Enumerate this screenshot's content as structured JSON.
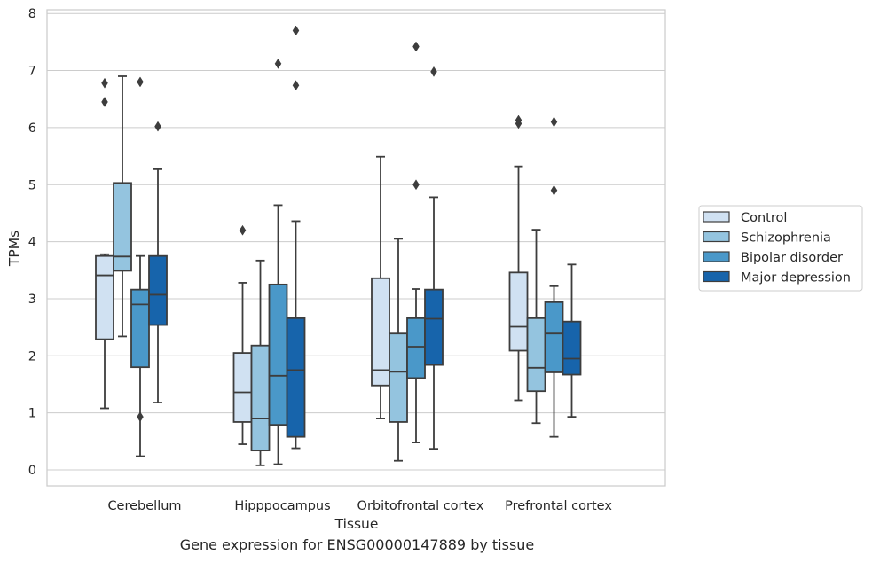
{
  "caption": "Gene expression for ENSG00000147889 by tissue",
  "chart_data": {
    "type": "boxplot",
    "xlabel": "Tissue",
    "ylabel": "TPMs",
    "ylim": [
      -0.3,
      8.05
    ],
    "yticks": [
      0,
      1,
      2,
      3,
      4,
      5,
      6,
      7,
      8
    ],
    "grid": "horizontal",
    "legend_position": "right",
    "categories": [
      "Cerebellum",
      "Hipppocampus",
      "Orbitofrontal cortex",
      "Prefrontal cortex"
    ],
    "series": [
      {
        "name": "Control",
        "color": "#d0e1f2",
        "boxes": [
          {
            "whisker_low": 1.08,
            "q1": 2.29,
            "median": 3.41,
            "q3": 3.75,
            "whisker_high": 3.78,
            "outliers": [
              6.45,
              6.78
            ]
          },
          {
            "whisker_low": 0.45,
            "q1": 0.84,
            "median": 1.36,
            "q3": 2.05,
            "whisker_high": 3.28,
            "outliers": [
              4.2
            ]
          },
          {
            "whisker_low": 0.9,
            "q1": 1.48,
            "median": 1.75,
            "q3": 3.36,
            "whisker_high": 5.49,
            "outliers": []
          },
          {
            "whisker_low": 1.22,
            "q1": 2.09,
            "median": 2.51,
            "q3": 3.46,
            "whisker_high": 5.32,
            "outliers": [
              6.07,
              6.13
            ]
          }
        ]
      },
      {
        "name": "Schizophrenia",
        "color": "#94c4df",
        "boxes": [
          {
            "whisker_low": 2.34,
            "q1": 3.49,
            "median": 3.74,
            "q3": 5.03,
            "whisker_high": 6.9,
            "outliers": []
          },
          {
            "whisker_low": 0.08,
            "q1": 0.34,
            "median": 0.9,
            "q3": 2.18,
            "whisker_high": 3.67,
            "outliers": []
          },
          {
            "whisker_low": 0.16,
            "q1": 0.84,
            "median": 1.72,
            "q3": 2.39,
            "whisker_high": 4.05,
            "outliers": []
          },
          {
            "whisker_low": 0.82,
            "q1": 1.38,
            "median": 1.79,
            "q3": 2.66,
            "whisker_high": 4.21,
            "outliers": []
          }
        ]
      },
      {
        "name": "Bipolar disorder",
        "color": "#4a98c9",
        "boxes": [
          {
            "whisker_low": 0.24,
            "q1": 1.8,
            "median": 2.9,
            "q3": 3.16,
            "whisker_high": 3.75,
            "outliers": [
              0.93,
              6.8
            ]
          },
          {
            "whisker_low": 0.1,
            "q1": 0.79,
            "median": 1.65,
            "q3": 3.25,
            "whisker_high": 4.64,
            "outliers": [
              7.12
            ]
          },
          {
            "whisker_low": 0.48,
            "q1": 1.61,
            "median": 2.16,
            "q3": 2.66,
            "whisker_high": 3.17,
            "outliers": [
              5.0,
              7.42
            ]
          },
          {
            "whisker_low": 0.58,
            "q1": 1.71,
            "median": 2.39,
            "q3": 2.94,
            "whisker_high": 3.22,
            "outliers": [
              4.9,
              6.1
            ]
          }
        ]
      },
      {
        "name": "Major depression",
        "color": "#1764ab",
        "boxes": [
          {
            "whisker_low": 1.18,
            "q1": 2.54,
            "median": 3.07,
            "q3": 3.75,
            "whisker_high": 5.27,
            "outliers": [
              6.02
            ]
          },
          {
            "whisker_low": 0.38,
            "q1": 0.58,
            "median": 1.75,
            "q3": 2.66,
            "whisker_high": 4.36,
            "outliers": [
              6.74,
              7.7
            ]
          },
          {
            "whisker_low": 0.37,
            "q1": 1.84,
            "median": 2.65,
            "q3": 3.16,
            "whisker_high": 4.78,
            "outliers": [
              6.98
            ]
          },
          {
            "whisker_low": 0.93,
            "q1": 1.67,
            "median": 1.95,
            "q3": 2.6,
            "whisker_high": 3.6,
            "outliers": []
          }
        ]
      }
    ]
  }
}
